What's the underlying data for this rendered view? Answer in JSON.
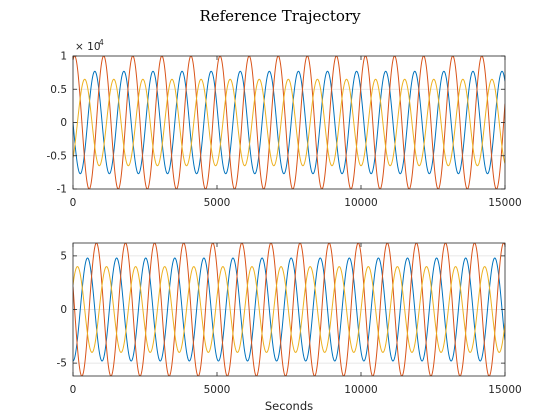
{
  "figure": {
    "title": "Reference Trajectory"
  },
  "colors": {
    "series": [
      "#0072BD",
      "#D95319",
      "#EDB120"
    ],
    "axes": "#262626",
    "grid": "#dfdfdf",
    "background": "#ffffff"
  },
  "chart_data": [
    {
      "type": "line",
      "title": "Reference Trajectory",
      "xlabel": "",
      "ylabel": "",
      "y_exponent_label": "× 10",
      "y_exponent_power": "4",
      "xlim": [
        0,
        15000
      ],
      "ylim": [
        -10000,
        10000
      ],
      "xticks": [
        0,
        5000,
        10000,
        15000
      ],
      "xtick_labels": [
        "0",
        "5000",
        "10000",
        "15000"
      ],
      "yticks": [
        -10000,
        -5000,
        0,
        5000,
        10000
      ],
      "ytick_labels": [
        "-1",
        "-0.5",
        "0",
        "0.5",
        "1"
      ],
      "grid": "horizontal",
      "series": [
        {
          "color": "#0072BD",
          "amplitude": 7700,
          "period": 1010,
          "phase_deg": 180,
          "x_range": [
            0,
            15000
          ]
        },
        {
          "color": "#D95319",
          "amplitude": 10000,
          "period": 1010,
          "phase_deg": 70,
          "x_range": [
            0,
            15000
          ]
        },
        {
          "color": "#EDB120",
          "amplitude": 6500,
          "period": 1010,
          "phase_deg": 305,
          "x_range": [
            0,
            15000
          ]
        }
      ]
    },
    {
      "type": "line",
      "title": "",
      "xlabel": "Seconds",
      "ylabel": "",
      "xlim": [
        0,
        15000
      ],
      "ylim": [
        -6.2,
        6.2
      ],
      "xticks": [
        0,
        5000,
        10000,
        15000
      ],
      "xtick_labels": [
        "0",
        "5000",
        "10000",
        "15000"
      ],
      "yticks": [
        -5,
        0,
        5
      ],
      "ytick_labels": [
        "-5",
        "0",
        "5"
      ],
      "grid": "horizontal",
      "series": [
        {
          "color": "#0072BD",
          "amplitude": 4.8,
          "period": 1010,
          "phase_deg": 270,
          "x_range": [
            0,
            15000
          ]
        },
        {
          "color": "#D95319",
          "amplitude": 6.2,
          "period": 1010,
          "phase_deg": 160,
          "x_range": [
            0,
            15000
          ]
        },
        {
          "color": "#EDB120",
          "amplitude": 4.0,
          "period": 1010,
          "phase_deg": 35,
          "x_range": [
            0,
            15000
          ]
        }
      ]
    }
  ]
}
